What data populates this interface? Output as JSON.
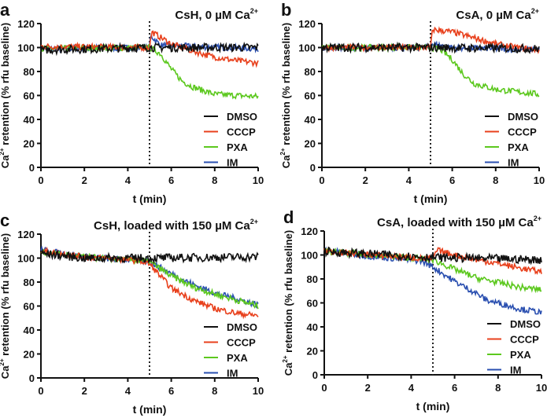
{
  "colors": {
    "DMSO": "#111111",
    "CCCP": "#e8401c",
    "PXA": "#5cc81e",
    "IM": "#2a4fb0"
  },
  "chart_data": [
    {
      "type": "line",
      "panel_label": "a",
      "title": "CsH, 0 µM Ca",
      "title_sup": "2+",
      "xlabel": "t (min)",
      "ylabel_pre": "Ca",
      "ylabel_sup": "2+",
      "ylabel_post": " retention (% rfu baseline)",
      "xlim": [
        0,
        10
      ],
      "ylim": [
        0,
        120
      ],
      "xticks": [
        "0",
        "2",
        "4",
        "6",
        "8",
        "10"
      ],
      "yticks": [
        "0",
        "20",
        "40",
        "60",
        "80",
        "100",
        "120"
      ],
      "annotation": {
        "type": "vertical-dotted-line",
        "x": 5
      },
      "legend_position": "bottom-right",
      "series": [
        {
          "name": "DMSO",
          "points": [
            [
              0,
              98
            ],
            [
              5,
              100
            ],
            [
              10,
              100
            ]
          ]
        },
        {
          "name": "CCCP",
          "points": [
            [
              0,
              101
            ],
            [
              5,
              100
            ],
            [
              5.1,
              113
            ],
            [
              6,
              103
            ],
            [
              7,
              97
            ],
            [
              8,
              92
            ],
            [
              9,
              89
            ],
            [
              10,
              87
            ]
          ]
        },
        {
          "name": "PXA",
          "points": [
            [
              0,
              99
            ],
            [
              5,
              100
            ],
            [
              5.5,
              95
            ],
            [
              6,
              82
            ],
            [
              6.5,
              72
            ],
            [
              7,
              67
            ],
            [
              7.5,
              64
            ],
            [
              8,
              61
            ],
            [
              9,
              60
            ],
            [
              10,
              59
            ]
          ]
        },
        {
          "name": "IM",
          "points": [
            [
              0,
              99
            ],
            [
              5,
              100
            ],
            [
              5.05,
              110
            ],
            [
              5.5,
              102
            ],
            [
              10,
              99
            ]
          ]
        }
      ]
    },
    {
      "type": "line",
      "panel_label": "b",
      "title": "CsA, 0 µM Ca",
      "title_sup": "2+",
      "xlabel": "t (min)",
      "ylabel_pre": "Ca",
      "ylabel_sup": "2+",
      "ylabel_post": " retention (% rfu baseline)",
      "xlim": [
        0,
        10
      ],
      "ylim": [
        0,
        120
      ],
      "xticks": [
        "0",
        "2",
        "4",
        "6",
        "8",
        "10"
      ],
      "yticks": [
        "0",
        "20",
        "40",
        "60",
        "80",
        "100",
        "120"
      ],
      "annotation": {
        "type": "vertical-dotted-line",
        "x": 5
      },
      "legend_position": "bottom-right",
      "series": [
        {
          "name": "DMSO",
          "points": [
            [
              0,
              100
            ],
            [
              5,
              100
            ],
            [
              10,
              99
            ]
          ]
        },
        {
          "name": "CCCP",
          "points": [
            [
              0,
              100
            ],
            [
              5,
              100
            ],
            [
              5.1,
              115
            ],
            [
              6,
              113
            ],
            [
              7,
              108
            ],
            [
              8,
              103
            ],
            [
              9,
              100
            ],
            [
              10,
              98
            ]
          ]
        },
        {
          "name": "PXA",
          "points": [
            [
              0,
              100
            ],
            [
              5,
              100
            ],
            [
              5.5,
              98
            ],
            [
              6,
              90
            ],
            [
              6.5,
              78
            ],
            [
              7,
              70
            ],
            [
              8,
              65
            ],
            [
              9,
              63
            ],
            [
              10,
              61
            ]
          ]
        },
        {
          "name": "IM",
          "points": [
            [
              0,
              100
            ],
            [
              5,
              100
            ],
            [
              5.05,
              103
            ],
            [
              6,
              100
            ],
            [
              10,
              98
            ]
          ]
        }
      ]
    },
    {
      "type": "line",
      "panel_label": "c",
      "title": "CsH, loaded with 150 µM Ca",
      "title_sup": "2+",
      "xlabel": "t (min)",
      "ylabel_pre": "Ca",
      "ylabel_sup": "2+",
      "ylabel_post": " retention (% rfu baseline)",
      "xlim": [
        0,
        10
      ],
      "ylim": [
        0,
        120
      ],
      "xticks": [
        "0",
        "2",
        "4",
        "6",
        "8",
        "10"
      ],
      "yticks": [
        "0",
        "20",
        "40",
        "60",
        "80",
        "100",
        "120"
      ],
      "annotation": {
        "type": "vertical-dotted-line",
        "x": 5
      },
      "legend_position": "bottom-right",
      "series": [
        {
          "name": "DMSO",
          "points": [
            [
              0,
              104
            ],
            [
              2,
              100
            ],
            [
              5,
              100
            ],
            [
              10,
              101
            ]
          ]
        },
        {
          "name": "CCCP",
          "points": [
            [
              0,
              106
            ],
            [
              2,
              101
            ],
            [
              4.5,
              98
            ],
            [
              5,
              95
            ],
            [
              5.5,
              85
            ],
            [
              6,
              75
            ],
            [
              7,
              65
            ],
            [
              8,
              58
            ],
            [
              9,
              54
            ],
            [
              10,
              52
            ]
          ]
        },
        {
          "name": "PXA",
          "points": [
            [
              0,
              105
            ],
            [
              2,
              101
            ],
            [
              4.5,
              98
            ],
            [
              5,
              97
            ],
            [
              6,
              85
            ],
            [
              7,
              76
            ],
            [
              8,
              70
            ],
            [
              9,
              65
            ],
            [
              10,
              60
            ]
          ]
        },
        {
          "name": "IM",
          "points": [
            [
              0,
              107
            ],
            [
              2,
              101
            ],
            [
              4.5,
              98
            ],
            [
              5,
              97
            ],
            [
              6,
              87
            ],
            [
              7,
              78
            ],
            [
              8,
              71
            ],
            [
              9,
              66
            ],
            [
              10,
              61
            ]
          ]
        }
      ]
    },
    {
      "type": "line",
      "panel_label": "d",
      "title": "CsA, loaded with 150 µM Ca",
      "title_sup": "2+",
      "xlabel": "t (min)",
      "ylabel_pre": "Ca",
      "ylabel_sup": "2+",
      "ylabel_post": " retention (% rfu baseline)",
      "xlim": [
        0,
        10
      ],
      "ylim": [
        0,
        120
      ],
      "xticks": [
        "0",
        "2",
        "4",
        "6",
        "8",
        "10"
      ],
      "yticks": [
        "0",
        "20",
        "40",
        "60",
        "80",
        "100",
        "120"
      ],
      "annotation": {
        "type": "vertical-dotted-line",
        "x": 5
      },
      "legend_position": "bottom-right",
      "series": [
        {
          "name": "DMSO",
          "points": [
            [
              0,
              103
            ],
            [
              5,
              98
            ],
            [
              10,
              96
            ]
          ]
        },
        {
          "name": "CCCP",
          "points": [
            [
              0,
              103
            ],
            [
              4.5,
              97
            ],
            [
              5,
              97
            ],
            [
              5.2,
              104
            ],
            [
              6,
              100
            ],
            [
              7,
              96
            ],
            [
              8,
              93
            ],
            [
              9,
              89
            ],
            [
              10,
              86
            ]
          ]
        },
        {
          "name": "PXA",
          "points": [
            [
              0,
              103
            ],
            [
              4.5,
              97
            ],
            [
              5,
              96
            ],
            [
              6,
              88
            ],
            [
              7,
              81
            ],
            [
              8,
              77
            ],
            [
              9,
              73
            ],
            [
              10,
              71
            ]
          ]
        },
        {
          "name": "IM",
          "points": [
            [
              0,
              104
            ],
            [
              2,
              99
            ],
            [
              4.5,
              95
            ],
            [
              5,
              90
            ],
            [
              6,
              78
            ],
            [
              7,
              68
            ],
            [
              7.5,
              62
            ],
            [
              8,
              60
            ],
            [
              9,
              55
            ],
            [
              10,
              52
            ]
          ]
        }
      ]
    }
  ]
}
